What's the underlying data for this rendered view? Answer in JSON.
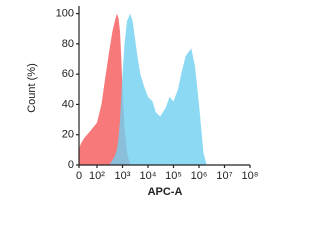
{
  "chart_data": {
    "type": "area",
    "x_label": "APC-A",
    "y_label": "Count (%)",
    "x": [
      0,
      10,
      30,
      60,
      100,
      150,
      200,
      300,
      400,
      500,
      600,
      700,
      800,
      900,
      1000,
      1200,
      1500,
      2000,
      2500,
      3000,
      4000,
      5000,
      7000,
      10000,
      15000,
      20000,
      30000,
      50000,
      70000,
      100000,
      150000,
      200000,
      300000,
      500000,
      700000,
      1000000,
      1500000,
      2000000
    ],
    "series": [
      {
        "color": "#f77272",
        "values": [
          10,
          14,
          18,
          22,
          28,
          40,
          55,
          75,
          88,
          95,
          100,
          97,
          88,
          70,
          50,
          25,
          8,
          0,
          null,
          null,
          null,
          null,
          null,
          null,
          null,
          null,
          null,
          null,
          null,
          null,
          null,
          null,
          null,
          null,
          null,
          null,
          null,
          null
        ]
      },
      {
        "color": "#6fd0f0",
        "values": [
          null,
          null,
          null,
          null,
          null,
          null,
          null,
          0,
          3,
          6,
          10,
          18,
          30,
          45,
          60,
          80,
          95,
          100,
          95,
          85,
          70,
          60,
          52,
          45,
          42,
          35,
          32,
          38,
          45,
          42,
          50,
          60,
          72,
          77,
          65,
          40,
          8,
          0
        ]
      }
    ],
    "xlim": [
      0,
      100000000
    ],
    "xticks": [
      0,
      {
        "value": 100,
        "label": "10²"
      },
      {
        "value": 1000,
        "label": "10³"
      },
      {
        "value": 10000,
        "label": "10⁴"
      },
      {
        "value": 100000,
        "label": "10⁵"
      },
      {
        "value": 1000000,
        "label": "10⁶"
      },
      {
        "value": 10000000,
        "label": "10⁷"
      },
      {
        "value": 100000000,
        "label": "10⁸"
      }
    ],
    "ylim": [
      0,
      105
    ],
    "yticks": [
      0,
      20,
      40,
      60,
      80,
      100
    ]
  }
}
